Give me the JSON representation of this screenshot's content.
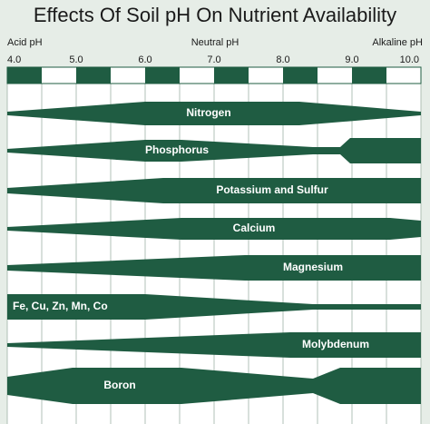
{
  "title": "Effects Of Soil pH On Nutrient Availability",
  "axis": {
    "left": "Acid pH",
    "center": "Neutral pH",
    "right": "Alkaline pH",
    "ticks": [
      "4.0",
      "5.0",
      "6.0",
      "7.0",
      "8.0",
      "9.0",
      "10.0"
    ]
  },
  "nutrients": [
    "Nitrogen",
    "Phosphorus",
    "Potassium and Sulfur",
    "Calcium",
    "Magnesium",
    "Fe, Cu, Zn, Mn, Co",
    "Molybdenum",
    "Boron"
  ]
}
